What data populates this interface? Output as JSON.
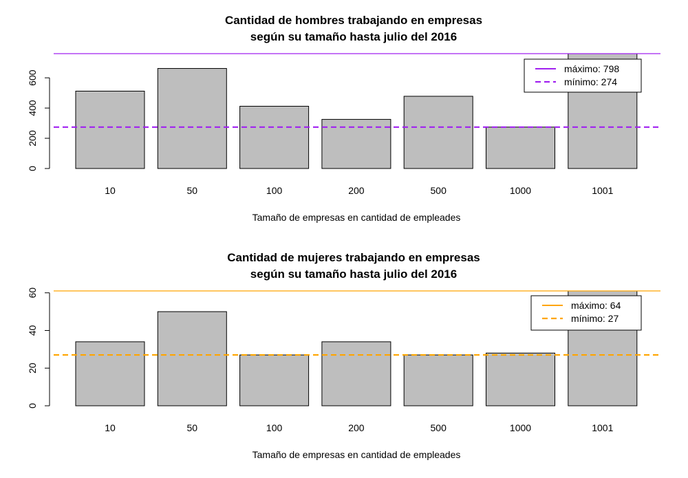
{
  "chart_data": [
    {
      "type": "bar",
      "title": "Cantidad de hombres trabajando en empresas\nsegún su tamaño hasta julio del 2016",
      "title_lines": [
        "Cantidad de hombres trabajando en empresas",
        "según su tamaño hasta julio del 2016"
      ],
      "xlabel": "Tamaño de empresas en cantidad de empleades",
      "ylabel": "",
      "categories": [
        "10",
        "50",
        "100",
        "200",
        "500",
        "1000",
        "1001"
      ],
      "values": [
        512,
        662,
        412,
        325,
        478,
        274,
        798
      ],
      "ylim": [
        0,
        760
      ],
      "yticks": [
        0,
        200,
        400,
        600
      ],
      "bar_color": "#bebebe",
      "line_color": "#a020f0",
      "max_line": 798,
      "min_line": 274,
      "legend": {
        "position": "top-right",
        "entries": [
          {
            "label": "máximo:",
            "value": "798",
            "style": "solid"
          },
          {
            "label": "mínimo:",
            "value": "274",
            "style": "dashed"
          }
        ]
      },
      "grid": false
    },
    {
      "type": "bar",
      "title": "Cantidad de mujeres trabajando en empresas\nsegún su tamaño hasta julio del 2016",
      "title_lines": [
        "Cantidad de mujeres trabajando en empresas",
        "según su tamaño hasta julio del 2016"
      ],
      "xlabel": "Tamaño de empresas en cantidad de empleades",
      "ylabel": "",
      "categories": [
        "10",
        "50",
        "100",
        "200",
        "500",
        "1000",
        "1001"
      ],
      "values": [
        34,
        50,
        27,
        34,
        27,
        28,
        64
      ],
      "ylim": [
        0,
        61
      ],
      "yticks": [
        0,
        20,
        40,
        60
      ],
      "bar_color": "#bebebe",
      "line_color": "#ffa500",
      "max_line": 64,
      "min_line": 27,
      "legend": {
        "position": "top-right",
        "entries": [
          {
            "label": "máximo:",
            "value": "64",
            "style": "solid"
          },
          {
            "label": "mínimo:",
            "value": "27",
            "style": "dashed"
          }
        ]
      },
      "grid": false
    }
  ]
}
